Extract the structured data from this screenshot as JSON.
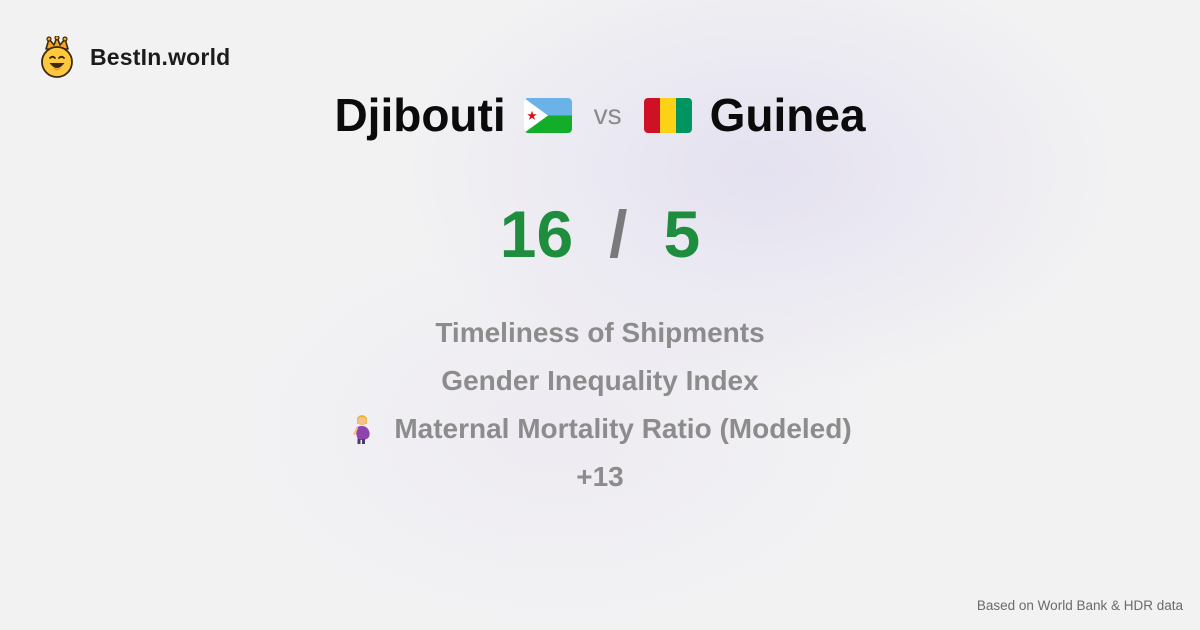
{
  "brand": {
    "name": "BestIn.world",
    "logo_icon": "smiling-crown-face-icon"
  },
  "comparison": {
    "left": {
      "country": "Djibouti",
      "flag_icon": "djibouti-flag-icon"
    },
    "vs_label": "vs",
    "right": {
      "country": "Guinea",
      "flag_icon": "guinea-flag-icon"
    }
  },
  "score": {
    "left": "16",
    "separator": "/",
    "right": "5",
    "color": "#1e8e3e"
  },
  "metrics": [
    {
      "label": "Timeliness of Shipments"
    },
    {
      "label": "Gender Inequality Index"
    },
    {
      "label": "Maternal Mortality Ratio (Modeled)",
      "icon": "pregnant-woman-icon"
    }
  ],
  "more_label": "+13",
  "footer": {
    "source": "Based on World Bank & HDR data"
  }
}
